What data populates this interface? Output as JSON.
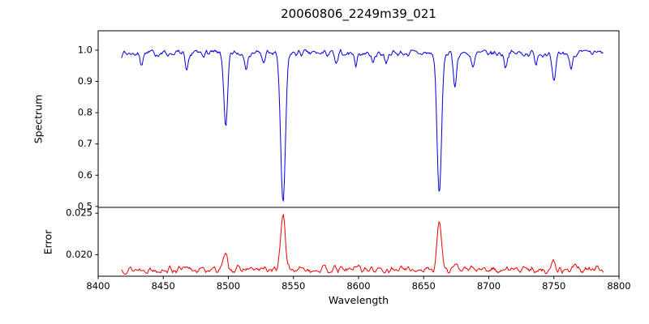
{
  "figure": {
    "title": "20060806_2249m39_021",
    "xlabel": "Wavelength",
    "background_color": "#ffffff",
    "axis_color": "#000000"
  },
  "chart_data": [
    {
      "type": "line",
      "title": "20060806_2249m39_021",
      "ylabel": "Spectrum",
      "xlabel": "Wavelength",
      "legend": "none",
      "grid": false,
      "color": "#0000dd",
      "xlim": [
        8400,
        8800
      ],
      "ylim": [
        0.497,
        1.062
      ],
      "x_range_data": [
        8418,
        8788
      ],
      "xtick_values": [
        8400,
        8450,
        8500,
        8550,
        8600,
        8650,
        8700,
        8750,
        8800
      ],
      "xtick_labels": [
        "8400",
        "8450",
        "8500",
        "8550",
        "8600",
        "8650",
        "8700",
        "8750",
        "8800"
      ],
      "ytick_values": [
        0.5,
        0.6,
        0.7,
        0.8,
        0.9,
        1.0
      ],
      "ytick_labels": [
        "0.5",
        "0.6",
        "0.7",
        "0.8",
        "0.9",
        "1.0"
      ],
      "continuum": 0.99,
      "noise_amplitude": 0.016,
      "absorption_lines": [
        {
          "center": 8433,
          "depth": 0.035,
          "sigma": 1.0
        },
        {
          "center": 8468,
          "depth": 0.065,
          "sigma": 1.2
        },
        {
          "center": 8498,
          "depth": 0.245,
          "sigma": 1.4
        },
        {
          "center": 8514,
          "depth": 0.045,
          "sigma": 1.1
        },
        {
          "center": 8527,
          "depth": 0.03,
          "sigma": 1.0
        },
        {
          "center": 8542,
          "depth": 0.487,
          "sigma": 1.8
        },
        {
          "center": 8583,
          "depth": 0.04,
          "sigma": 1.1
        },
        {
          "center": 8598,
          "depth": 0.035,
          "sigma": 1.0
        },
        {
          "center": 8611,
          "depth": 0.035,
          "sigma": 1.0
        },
        {
          "center": 8621,
          "depth": 0.03,
          "sigma": 1.0
        },
        {
          "center": 8662,
          "depth": 0.455,
          "sigma": 1.7
        },
        {
          "center": 8674,
          "depth": 0.1,
          "sigma": 1.3
        },
        {
          "center": 8688,
          "depth": 0.05,
          "sigma": 1.2
        },
        {
          "center": 8713,
          "depth": 0.04,
          "sigma": 1.1
        },
        {
          "center": 8736,
          "depth": 0.03,
          "sigma": 1.0
        },
        {
          "center": 8750,
          "depth": 0.095,
          "sigma": 1.5
        },
        {
          "center": 8763,
          "depth": 0.05,
          "sigma": 1.1
        }
      ]
    },
    {
      "type": "line",
      "ylabel": "Error",
      "legend": "none",
      "grid": false,
      "color": "#ee0000",
      "xlim": [
        8400,
        8800
      ],
      "ylim": [
        0.0174,
        0.0257
      ],
      "x_range_data": [
        8418,
        8788
      ],
      "ytick_values": [
        0.02,
        0.025
      ],
      "ytick_labels": [
        "0.020",
        "0.025"
      ],
      "baseline": 0.0182,
      "noise_amplitude": 0.0006,
      "peaks": [
        {
          "center": 8498,
          "height": 0.0019,
          "sigma": 1.6
        },
        {
          "center": 8542,
          "height": 0.0068,
          "sigma": 1.7
        },
        {
          "center": 8599,
          "height": 0.0006,
          "sigma": 1.5
        },
        {
          "center": 8662,
          "height": 0.0058,
          "sigma": 1.7
        },
        {
          "center": 8674,
          "height": 0.0006,
          "sigma": 1.4
        },
        {
          "center": 8750,
          "height": 0.0009,
          "sigma": 1.5
        },
        {
          "center": 8766,
          "height": 0.0005,
          "sigma": 1.2
        }
      ]
    }
  ]
}
